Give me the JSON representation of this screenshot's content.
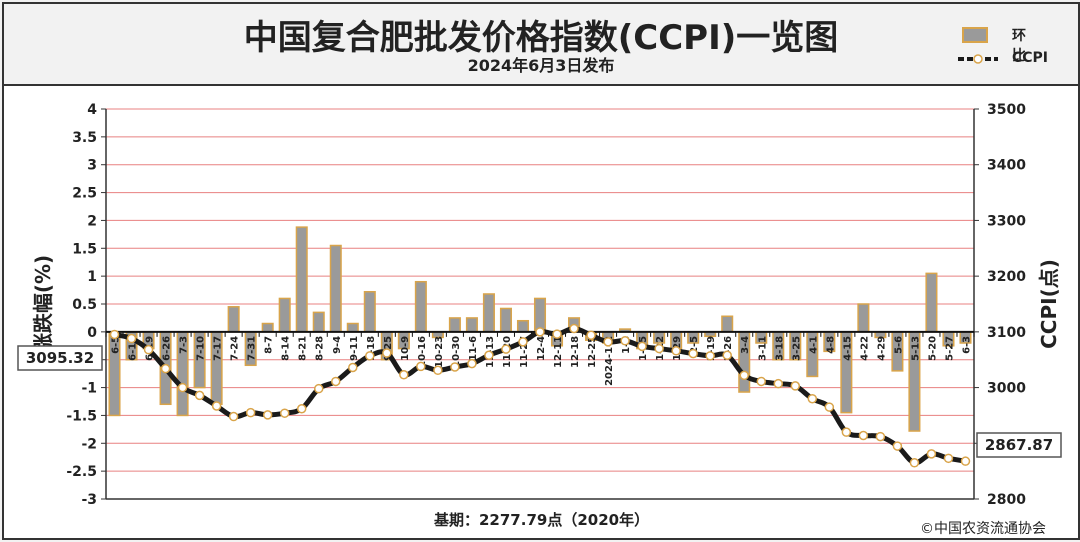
{
  "chart_data": {
    "type": "bar+line",
    "title": "中国复合肥批发价格指数(CCPI)一览图",
    "subtitle": "2024年6月3日发布",
    "y_left_label": "涨跌幅(%)",
    "y_right_label": "CCPI(点)",
    "y_left_lim": [
      -3,
      4
    ],
    "y_left_ticks": [
      "4",
      "3.5",
      "3",
      "2.5",
      "2",
      "1.5",
      "1",
      "0.5",
      "0",
      "-0.5",
      "-1",
      "-1.5",
      "-2",
      "-2.5",
      "-3"
    ],
    "y_right_lim": [
      2800,
      3500
    ],
    "y_right_ticks": [
      "3500",
      "3400",
      "3300",
      "3200",
      "3100",
      "3000",
      "2900",
      "2800"
    ],
    "categories": [
      "6-5",
      "6-12",
      "6-19",
      "6-26",
      "7-3",
      "7-10",
      "7-17",
      "7-24",
      "7-31",
      "8-7",
      "8-14",
      "8-21",
      "8-28",
      "9-4",
      "9-11",
      "9-18",
      "9-25",
      "10-9",
      "10-16",
      "10-23",
      "10-30",
      "11-6",
      "11-13",
      "11-20",
      "11-27",
      "12-4",
      "12-11",
      "12-18",
      "12-25",
      "2024-1-2",
      "1-8",
      "1-15",
      "1-22",
      "1-29",
      "2-5",
      "2-19",
      "2-26",
      "3-4",
      "3-11",
      "3-18",
      "3-25",
      "4-1",
      "4-8",
      "4-15",
      "4-22",
      "4-29",
      "5-6",
      "5-13",
      "5-20",
      "5-27",
      "6-3"
    ],
    "series": [
      {
        "name": "环比",
        "type": "bar",
        "values": [
          -1.5,
          -0.5,
          -0.3,
          -1.3,
          -1.5,
          -1.0,
          -1.3,
          0.45,
          -0.6,
          0.15,
          0.6,
          1.88,
          0.35,
          1.55,
          0.15,
          0.72,
          -0.5,
          -0.3,
          0.9,
          -0.1,
          0.25,
          0.25,
          0.68,
          0.42,
          0.2,
          0.6,
          -0.25,
          0.25,
          -0.15,
          -0.2,
          0.05,
          -0.3,
          -0.2,
          -0.3,
          -0.2,
          -0.08,
          0.28,
          -1.08,
          -0.2,
          -0.5,
          -0.5,
          -0.8,
          -0.35,
          -1.45,
          0.5,
          -0.1,
          -0.7,
          -1.78,
          1.05,
          -0.25,
          -0.2
        ]
      },
      {
        "name": "CCPI",
        "type": "line",
        "values": [
          3095.32,
          3088,
          3068,
          3034,
          3000,
          2986,
          2967,
          2948,
          2955,
          2951,
          2954,
          2962,
          2998,
          3011,
          3036,
          3057,
          3062,
          3023,
          3038,
          3031,
          3037,
          3043,
          3058,
          3069,
          3082,
          3100,
          3096,
          3106,
          3094,
          3082,
          3084,
          3074,
          3070,
          3066,
          3061,
          3057,
          3058,
          3022,
          3011,
          3007,
          3003,
          2980,
          2965,
          2920,
          2914,
          2912,
          2895,
          2865,
          2881,
          2873,
          2867.87
        ]
      }
    ],
    "start_value_label": "3095.32",
    "end_value_label": "2867.87",
    "grid": true,
    "legend_position": "top-right"
  },
  "legend": {
    "bar_label": "环比",
    "line_label": "CCPI"
  },
  "footer": {
    "base": "基期：2277.79点（2020年）",
    "copyright": "©中国农资流通协会"
  },
  "colors": {
    "bar_fill": "#9a9a9a",
    "bar_border": "#d9a44a",
    "grid_line": "#e88080",
    "line": "#1a1a1a",
    "marker_fill": "#ffffff",
    "marker_border": "#d9a44a"
  }
}
